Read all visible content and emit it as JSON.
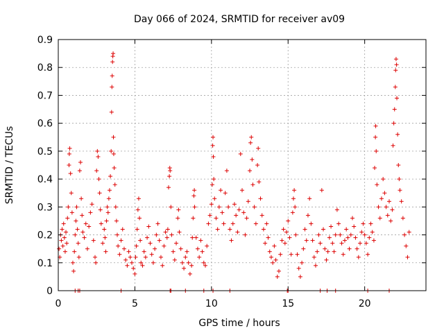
{
  "chart_data": {
    "type": "scatter",
    "title": "Day 066 of 2024, SRMTID for receiver av09",
    "xlabel": "GPS time / hours",
    "ylabel": "SRMTID / TECUs",
    "xlim": [
      0,
      24
    ],
    "ylim": [
      0,
      0.9
    ],
    "xticks": [
      0,
      5,
      10,
      15,
      20
    ],
    "xtick_labels": [
      "0",
      "5",
      "10",
      "15",
      "20"
    ],
    "yticks": [
      0,
      0.1,
      0.2,
      0.3,
      0.4,
      0.5,
      0.6,
      0.7,
      0.8,
      0.9
    ],
    "ytick_labels": [
      "0",
      "0.1",
      "0.2",
      "0.3",
      "0.4",
      "0.5",
      "0.6",
      "0.7",
      "0.8",
      "0.9"
    ],
    "grid": true,
    "marker": "+",
    "series_color": "#dd0000",
    "series": [
      {
        "name": "SRMTID",
        "points": [
          [
            0.05,
            0.15
          ],
          [
            0.1,
            0.12
          ],
          [
            0.15,
            0.2
          ],
          [
            0.2,
            0.18
          ],
          [
            0.25,
            0.22
          ],
          [
            0.3,
            0.16
          ],
          [
            0.35,
            0.24
          ],
          [
            0.4,
            0.19
          ],
          [
            0.45,
            0.14
          ],
          [
            0.5,
            0.21
          ],
          [
            0.55,
            0.17
          ],
          [
            0.6,
            0.26
          ],
          [
            0.65,
            0.3
          ],
          [
            0.7,
            0.45
          ],
          [
            0.72,
            0.49
          ],
          [
            0.75,
            0.51
          ],
          [
            0.8,
            0.42
          ],
          [
            0.85,
            0.35
          ],
          [
            0.9,
            0.28
          ],
          [
            0.95,
            0.1
          ],
          [
            1.0,
            0.07
          ],
          [
            1.05,
            0.14
          ],
          [
            1.1,
            0.2
          ],
          [
            1.15,
            0.25
          ],
          [
            1.2,
            0.3
          ],
          [
            1.25,
            0.22
          ],
          [
            1.3,
            0.17
          ],
          [
            1.35,
            0.12
          ],
          [
            1.4,
            0.43
          ],
          [
            1.45,
            0.46
          ],
          [
            1.5,
            0.33
          ],
          [
            1.55,
            0.27
          ],
          [
            1.6,
            0.21
          ],
          [
            1.7,
            0.19
          ],
          [
            1.8,
            0.24
          ],
          [
            1.9,
            0.15
          ],
          [
            2.0,
            0.23
          ],
          [
            2.1,
            0.28
          ],
          [
            2.2,
            0.31
          ],
          [
            2.3,
            0.18
          ],
          [
            2.4,
            0.12
          ],
          [
            2.45,
            0.1
          ],
          [
            2.5,
            0.43
          ],
          [
            2.55,
            0.5
          ],
          [
            2.6,
            0.48
          ],
          [
            2.65,
            0.4
          ],
          [
            2.7,
            0.35
          ],
          [
            2.75,
            0.29
          ],
          [
            2.8,
            0.24
          ],
          [
            2.9,
            0.17
          ],
          [
            3.0,
            0.22
          ],
          [
            3.05,
            0.19
          ],
          [
            3.1,
            0.14
          ],
          [
            3.15,
            0.25
          ],
          [
            3.2,
            0.3
          ],
          [
            3.25,
            0.28
          ],
          [
            3.3,
            0.33
          ],
          [
            3.35,
            0.36
          ],
          [
            3.4,
            0.41
          ],
          [
            3.45,
            0.5
          ],
          [
            3.48,
            0.64
          ],
          [
            3.5,
            0.73
          ],
          [
            3.52,
            0.77
          ],
          [
            3.54,
            0.82
          ],
          [
            3.56,
            0.84
          ],
          [
            3.58,
            0.85
          ],
          [
            3.6,
            0.55
          ],
          [
            3.62,
            0.49
          ],
          [
            3.65,
            0.44
          ],
          [
            3.7,
            0.38
          ],
          [
            3.75,
            0.3
          ],
          [
            3.8,
            0.25
          ],
          [
            3.85,
            0.2
          ],
          [
            3.9,
            0.16
          ],
          [
            4.0,
            0.13
          ],
          [
            4.1,
            0.18
          ],
          [
            4.2,
            0.22
          ],
          [
            4.3,
            0.15
          ],
          [
            4.4,
            0.11
          ],
          [
            4.5,
            0.09
          ],
          [
            4.6,
            0.14
          ],
          [
            4.7,
            0.12
          ],
          [
            4.8,
            0.1
          ],
          [
            4.9,
            0.08
          ],
          [
            5.0,
            0.06
          ],
          [
            5.05,
            0.12
          ],
          [
            5.1,
            0.16
          ],
          [
            5.15,
            0.22
          ],
          [
            5.2,
            0.29
          ],
          [
            5.25,
            0.33
          ],
          [
            5.3,
            0.26
          ],
          [
            5.35,
            0.18
          ],
          [
            5.4,
            0.1
          ],
          [
            5.5,
            0.09
          ],
          [
            5.6,
            0.14
          ],
          [
            5.7,
            0.12
          ],
          [
            5.8,
            0.19
          ],
          [
            5.9,
            0.23
          ],
          [
            6.0,
            0.17
          ],
          [
            6.1,
            0.13
          ],
          [
            6.2,
            0.1
          ],
          [
            6.3,
            0.15
          ],
          [
            6.4,
            0.2
          ],
          [
            6.5,
            0.24
          ],
          [
            6.6,
            0.18
          ],
          [
            6.7,
            0.12
          ],
          [
            6.8,
            0.09
          ],
          [
            6.9,
            0.16
          ],
          [
            7.0,
            0.21
          ],
          [
            7.1,
            0.19
          ],
          [
            7.15,
            0.22
          ],
          [
            7.2,
            0.37
          ],
          [
            7.25,
            0.41
          ],
          [
            7.28,
            0.44
          ],
          [
            7.3,
            0.43
          ],
          [
            7.35,
            0.3
          ],
          [
            7.4,
            0.2
          ],
          [
            7.5,
            0.14
          ],
          [
            7.6,
            0.11
          ],
          [
            7.7,
            0.17
          ],
          [
            7.8,
            0.26
          ],
          [
            7.85,
            0.29
          ],
          [
            7.9,
            0.21
          ],
          [
            8.0,
            0.15
          ],
          [
            8.1,
            0.1
          ],
          [
            8.2,
            0.08
          ],
          [
            8.3,
            0.12
          ],
          [
            8.4,
            0.14
          ],
          [
            8.5,
            0.1
          ],
          [
            8.6,
            0.06
          ],
          [
            8.7,
            0.09
          ],
          [
            8.75,
            0.19
          ],
          [
            8.8,
            0.26
          ],
          [
            8.85,
            0.34
          ],
          [
            8.88,
            0.36
          ],
          [
            8.9,
            0.3
          ],
          [
            9.0,
            0.19
          ],
          [
            9.1,
            0.15
          ],
          [
            9.2,
            0.12
          ],
          [
            9.3,
            0.18
          ],
          [
            9.4,
            0.14
          ],
          [
            9.5,
            0.1
          ],
          [
            9.6,
            0.09
          ],
          [
            9.7,
            0.16
          ],
          [
            9.8,
            0.24
          ],
          [
            9.9,
            0.27
          ],
          [
            10.0,
            0.31
          ],
          [
            10.05,
            0.38
          ],
          [
            10.08,
            0.52
          ],
          [
            10.1,
            0.55
          ],
          [
            10.12,
            0.48
          ],
          [
            10.15,
            0.4
          ],
          [
            10.2,
            0.33
          ],
          [
            10.3,
            0.26
          ],
          [
            10.4,
            0.22
          ],
          [
            10.5,
            0.3
          ],
          [
            10.6,
            0.36
          ],
          [
            10.7,
            0.28
          ],
          [
            10.8,
            0.24
          ],
          [
            10.9,
            0.35
          ],
          [
            11.0,
            0.43
          ],
          [
            11.1,
            0.3
          ],
          [
            11.2,
            0.22
          ],
          [
            11.3,
            0.18
          ],
          [
            11.4,
            0.24
          ],
          [
            11.5,
            0.31
          ],
          [
            11.6,
            0.27
          ],
          [
            11.7,
            0.21
          ],
          [
            11.8,
            0.29
          ],
          [
            11.9,
            0.49
          ],
          [
            12.0,
            0.36
          ],
          [
            12.1,
            0.28
          ],
          [
            12.2,
            0.2
          ],
          [
            12.3,
            0.26
          ],
          [
            12.4,
            0.32
          ],
          [
            12.5,
            0.43
          ],
          [
            12.55,
            0.53
          ],
          [
            12.6,
            0.55
          ],
          [
            12.65,
            0.47
          ],
          [
            12.7,
            0.38
          ],
          [
            12.8,
            0.3
          ],
          [
            12.9,
            0.24
          ],
          [
            13.0,
            0.45
          ],
          [
            13.05,
            0.51
          ],
          [
            13.1,
            0.39
          ],
          [
            13.2,
            0.33
          ],
          [
            13.3,
            0.27
          ],
          [
            13.4,
            0.22
          ],
          [
            13.5,
            0.17
          ],
          [
            13.6,
            0.24
          ],
          [
            13.7,
            0.19
          ],
          [
            13.8,
            0.14
          ],
          [
            13.9,
            0.12
          ],
          [
            14.0,
            0.1
          ],
          [
            14.1,
            0.16
          ],
          [
            14.2,
            0.11
          ],
          [
            14.3,
            0.05
          ],
          [
            14.4,
            0.07
          ],
          [
            14.5,
            0.13
          ],
          [
            14.6,
            0.18
          ],
          [
            14.7,
            0.22
          ],
          [
            14.8,
            0.17
          ],
          [
            14.9,
            0.21
          ],
          [
            15.0,
            0.25
          ],
          [
            15.1,
            0.19
          ],
          [
            15.2,
            0.13
          ],
          [
            15.3,
            0.28
          ],
          [
            15.35,
            0.33
          ],
          [
            15.4,
            0.36
          ],
          [
            15.45,
            0.3
          ],
          [
            15.5,
            0.2
          ],
          [
            15.6,
            0.13
          ],
          [
            15.7,
            0.08
          ],
          [
            15.8,
            0.05
          ],
          [
            15.9,
            0.1
          ],
          [
            16.0,
            0.15
          ],
          [
            16.1,
            0.22
          ],
          [
            16.2,
            0.18
          ],
          [
            16.3,
            0.27
          ],
          [
            16.4,
            0.33
          ],
          [
            16.5,
            0.24
          ],
          [
            16.6,
            0.18
          ],
          [
            16.7,
            0.12
          ],
          [
            16.8,
            0.09
          ],
          [
            16.9,
            0.14
          ],
          [
            17.0,
            0.2
          ],
          [
            17.1,
            0.17
          ],
          [
            17.2,
            0.36
          ],
          [
            17.3,
            0.22
          ],
          [
            17.4,
            0.15
          ],
          [
            17.5,
            0.11
          ],
          [
            17.6,
            0.14
          ],
          [
            17.7,
            0.19
          ],
          [
            17.8,
            0.23
          ],
          [
            17.9,
            0.17
          ],
          [
            18.0,
            0.14
          ],
          [
            18.1,
            0.2
          ],
          [
            18.2,
            0.29
          ],
          [
            18.3,
            0.24
          ],
          [
            18.4,
            0.2
          ],
          [
            18.5,
            0.17
          ],
          [
            18.6,
            0.13
          ],
          [
            18.7,
            0.18
          ],
          [
            18.8,
            0.22
          ],
          [
            18.9,
            0.19
          ],
          [
            19.0,
            0.15
          ],
          [
            19.1,
            0.2
          ],
          [
            19.2,
            0.26
          ],
          [
            19.3,
            0.23
          ],
          [
            19.4,
            0.19
          ],
          [
            19.5,
            0.15
          ],
          [
            19.6,
            0.12
          ],
          [
            19.7,
            0.17
          ],
          [
            19.8,
            0.21
          ],
          [
            19.9,
            0.24
          ],
          [
            20.0,
            0.2
          ],
          [
            20.1,
            0.17
          ],
          [
            20.2,
            0.13
          ],
          [
            20.3,
            0.19
          ],
          [
            20.4,
            0.24
          ],
          [
            20.5,
            0.21
          ],
          [
            20.6,
            0.18
          ],
          [
            20.65,
            0.44
          ],
          [
            20.7,
            0.55
          ],
          [
            20.72,
            0.59
          ],
          [
            20.75,
            0.5
          ],
          [
            20.8,
            0.38
          ],
          [
            20.9,
            0.3
          ],
          [
            21.0,
            0.26
          ],
          [
            21.1,
            0.33
          ],
          [
            21.2,
            0.4
          ],
          [
            21.3,
            0.35
          ],
          [
            21.4,
            0.3
          ],
          [
            21.5,
            0.27
          ],
          [
            21.6,
            0.32
          ],
          [
            21.7,
            0.25
          ],
          [
            21.8,
            0.29
          ],
          [
            21.85,
            0.52
          ],
          [
            21.9,
            0.6
          ],
          [
            21.95,
            0.65
          ],
          [
            22.0,
            0.73
          ],
          [
            22.02,
            0.79
          ],
          [
            22.05,
            0.83
          ],
          [
            22.08,
            0.81
          ],
          [
            22.1,
            0.69
          ],
          [
            22.15,
            0.56
          ],
          [
            22.2,
            0.45
          ],
          [
            22.25,
            0.4
          ],
          [
            22.3,
            0.36
          ],
          [
            22.4,
            0.32
          ],
          [
            22.5,
            0.26
          ],
          [
            22.6,
            0.2
          ],
          [
            22.7,
            0.16
          ],
          [
            22.8,
            0.12
          ],
          [
            22.9,
            0.21
          ]
        ]
      }
    ],
    "zero_value_times": [
      1.1,
      1.3,
      1.4,
      4.1,
      7.3,
      7.35,
      8.3,
      9.5,
      10.1,
      11.2,
      14.95,
      15.0,
      17.1,
      17.55,
      18.1,
      20.2,
      21.6
    ]
  }
}
